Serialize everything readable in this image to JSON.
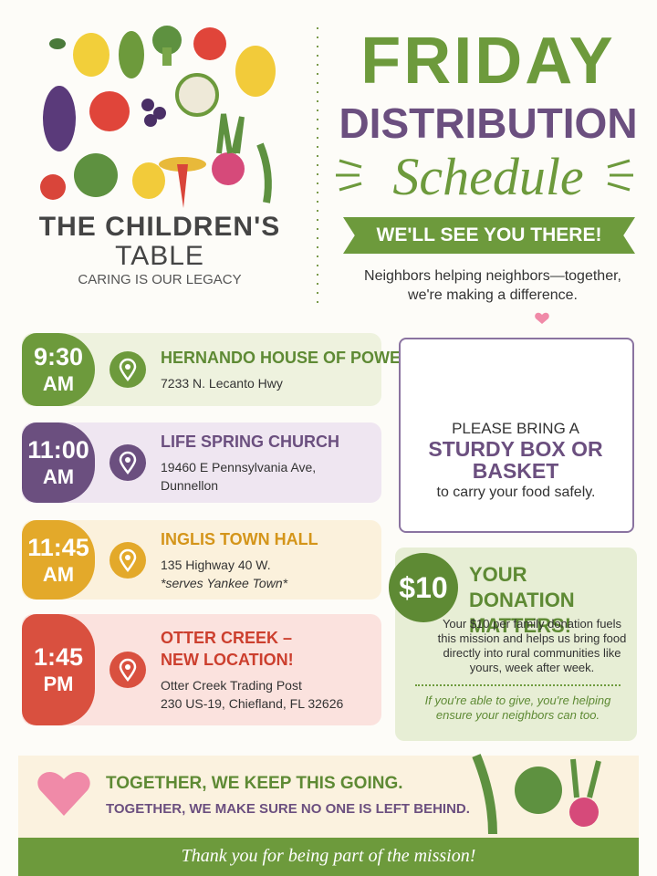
{
  "header": {
    "org_name_line1": "THE CHILDREN'S",
    "org_name_line2": "TABLE",
    "tagline": "CARING IS OUR LEGACY"
  },
  "title": {
    "line1": "FRIDAY",
    "line2": "DISTRIBUTION",
    "line3": "Schedule",
    "banner": "WE'LL SEE YOU THERE!",
    "intro": "Neighbors helping neighbors—together, we're making a difference."
  },
  "stops": [
    {
      "time": "9:30",
      "period": "AM",
      "name_lines": [
        "HERNANDO HOUSE OF POWER"
      ],
      "address_lines": [
        "7233 N. Lecanto Hwy"
      ]
    },
    {
      "time": "11:00",
      "period": "AM",
      "name_lines": [
        "LIFE SPRING CHURCH"
      ],
      "address_lines": [
        "19460 E Pennsylvania Ave,",
        "Dunnellon"
      ]
    },
    {
      "time": "11:45",
      "period": "AM",
      "name_lines": [
        "INGLIS TOWN HALL"
      ],
      "address_lines": [
        "135 Highway 40 W."
      ],
      "note": "*serves Yankee Town*"
    },
    {
      "time": "1:45",
      "period": "PM",
      "name_lines": [
        "OTTER CREEK –",
        "NEW LOCATION!"
      ],
      "address_lines": [
        "Otter Creek Trading Post",
        "230 US-19, Chiefland, FL 32626"
      ]
    }
  ],
  "basket": {
    "line1": "PLEASE BRING A",
    "emphasis": "STURDY BOX OR BASKET",
    "line3": "to carry your food safely."
  },
  "donation": {
    "amount": "$10",
    "heading": "YOUR DONATION MATTERS!",
    "body": "Your $10 per family donation fuels this mission and helps us bring food directly into rural communities like yours, week after week.",
    "closing": "If you're able to give, you're helping ensure your neighbors can too."
  },
  "closing": {
    "line1": "TOGETHER, WE KEEP THIS GOING.",
    "line2": "TOGETHER, WE MAKE SURE NO ONE IS LEFT BEHIND.",
    "footer": "Thank you for being part of the mission!"
  }
}
